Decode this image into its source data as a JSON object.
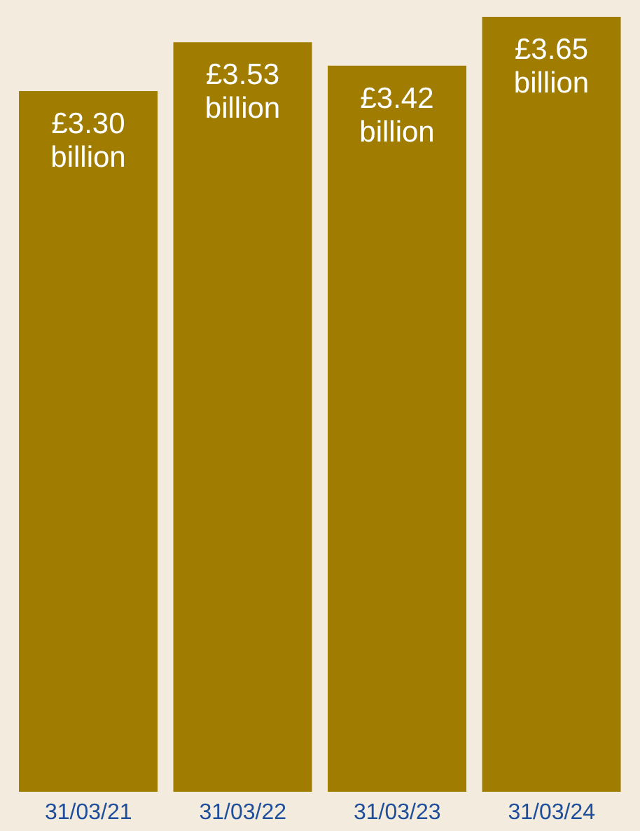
{
  "chart_data": {
    "type": "bar",
    "categories": [
      "31/03/21",
      "31/03/22",
      "31/03/23",
      "31/03/24"
    ],
    "values": [
      3.3,
      3.53,
      3.42,
      3.65
    ],
    "value_labels": [
      "£3.30 billion",
      "£3.53 billion",
      "£3.42 billion",
      "£3.65 billion"
    ],
    "color": "#a07d00",
    "grid": false,
    "legend": false
  }
}
